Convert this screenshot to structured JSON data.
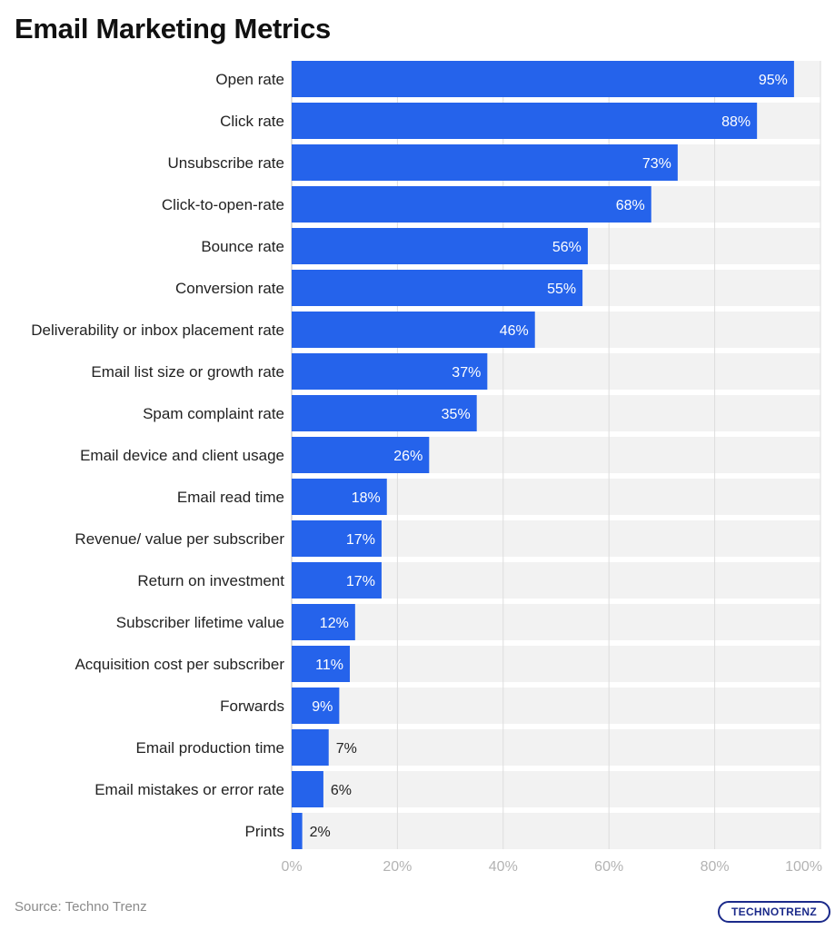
{
  "title": "Email Marketing Metrics",
  "source": "Source: Techno Trenz",
  "logo_text": "TECHNOTRENZ",
  "colors": {
    "bar": "#2563eb",
    "band": "#f2f2f2",
    "grid": "#dddddd",
    "value_inside": "#ffffff",
    "value_outside": "#222222"
  },
  "chart_data": {
    "type": "bar",
    "orientation": "horizontal",
    "categories": [
      "Open rate",
      "Click rate",
      "Unsubscribe rate",
      "Click-to-open-rate",
      "Bounce rate",
      "Conversion rate",
      "Deliverability or inbox placement rate",
      "Email list size or growth rate",
      "Spam complaint rate",
      "Email device and client usage",
      "Email read time",
      "Revenue/ value per subscriber",
      "Return on investment",
      "Subscriber lifetime value",
      "Acquisition cost per subscriber",
      "Forwards",
      "Email production time",
      "Email mistakes or error rate",
      "Prints"
    ],
    "values": [
      95,
      88,
      73,
      68,
      56,
      55,
      46,
      37,
      35,
      26,
      18,
      17,
      17,
      12,
      11,
      9,
      7,
      6,
      2
    ],
    "value_labels": [
      "95%",
      "88%",
      "73%",
      "68%",
      "56%",
      "55%",
      "46%",
      "37%",
      "35%",
      "26%",
      "18%",
      "17%",
      "17%",
      "12%",
      "11%",
      "9%",
      "7%",
      "6%",
      "2%"
    ],
    "xlim": [
      0,
      100
    ],
    "xticks": [
      0,
      20,
      40,
      60,
      80,
      100
    ],
    "xtick_labels": [
      "0%",
      "20%",
      "40%",
      "60%",
      "80%",
      "100%"
    ],
    "grid": true,
    "legend": "none"
  }
}
